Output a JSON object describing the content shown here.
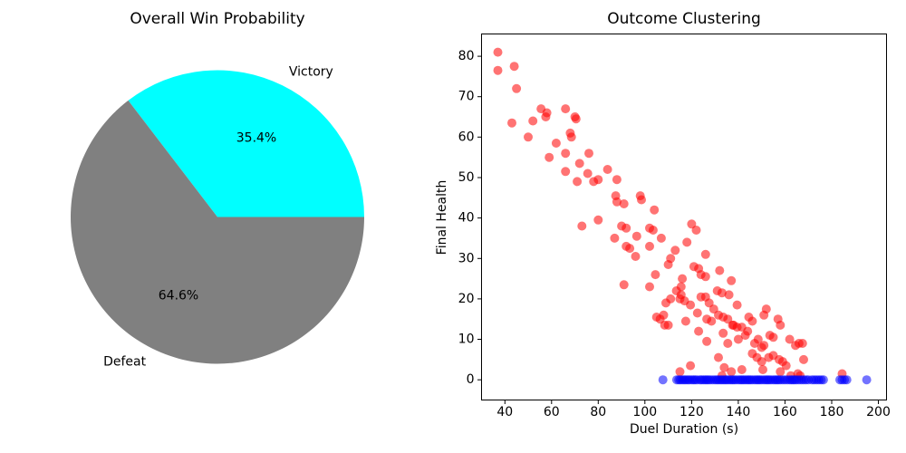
{
  "chart_data": [
    {
      "type": "pie",
      "title": "Overall Win Probability",
      "labels": [
        "Victory",
        "Defeat"
      ],
      "values": [
        35.4,
        64.6
      ],
      "pct_labels": [
        "35.4%",
        "64.6%"
      ],
      "colors": [
        "#00ffff",
        "#808080"
      ],
      "startangle": 0,
      "direction": "counterclockwise",
      "legend": "none"
    },
    {
      "type": "scatter",
      "title": "Outcome Clustering",
      "xlabel": "Duel Duration (s)",
      "ylabel": "Final Health",
      "xlim": [
        30,
        203.5
      ],
      "ylim": [
        -5,
        85.5
      ],
      "xticks": [
        40,
        60,
        80,
        100,
        120,
        140,
        160,
        180,
        200
      ],
      "yticks": [
        0,
        10,
        20,
        30,
        40,
        50,
        60,
        70,
        80
      ],
      "grid": false,
      "legend": "none",
      "marker_alpha": 0.55,
      "series": [
        {
          "name": "nonzero-final-health",
          "color": "#ff0000",
          "points": [
            [
              37,
              81
            ],
            [
              37,
              76.5
            ],
            [
              44,
              77.5
            ],
            [
              45,
              72
            ],
            [
              43,
              63.5
            ],
            [
              52,
              64
            ],
            [
              50,
              60
            ],
            [
              55.5,
              67
            ],
            [
              57.5,
              65
            ],
            [
              58,
              66
            ],
            [
              66,
              67
            ],
            [
              70,
              65
            ],
            [
              70.5,
              64.5
            ],
            [
              68,
              61
            ],
            [
              68.5,
              60
            ],
            [
              62,
              58.5
            ],
            [
              66,
              56
            ],
            [
              59,
              55
            ],
            [
              76,
              56
            ],
            [
              72,
              53.5
            ],
            [
              66,
              51.5
            ],
            [
              75.5,
              51
            ],
            [
              71,
              49
            ],
            [
              78,
              49
            ],
            [
              84,
              52
            ],
            [
              80,
              49.5
            ],
            [
              88,
              49.5
            ],
            [
              87.5,
              45.5
            ],
            [
              88,
              44
            ],
            [
              98,
              45.5
            ],
            [
              98.5,
              44.5
            ],
            [
              91,
              43.5
            ],
            [
              104,
              42
            ],
            [
              73,
              38
            ],
            [
              80,
              39.5
            ],
            [
              90,
              38
            ],
            [
              92,
              37.5
            ],
            [
              102,
              37.5
            ],
            [
              103.5,
              37
            ],
            [
              120,
              38.5
            ],
            [
              122,
              37
            ],
            [
              87,
              35
            ],
            [
              96.5,
              35.5
            ],
            [
              107,
              35
            ],
            [
              118,
              34
            ],
            [
              92,
              33
            ],
            [
              93.5,
              32.5
            ],
            [
              102,
              33
            ],
            [
              113,
              32
            ],
            [
              96,
              30.5
            ],
            [
              111,
              30
            ],
            [
              126,
              31
            ],
            [
              91,
              23.5
            ],
            [
              110,
              28.5
            ],
            [
              121,
              28
            ],
            [
              123,
              27.5
            ],
            [
              132,
              27
            ],
            [
              124,
              26
            ],
            [
              126,
              25.5
            ],
            [
              104.5,
              26
            ],
            [
              116,
              25
            ],
            [
              137,
              24.5
            ],
            [
              113.5,
              22
            ],
            [
              115.5,
              21
            ],
            [
              115,
              20
            ],
            [
              117,
              19.5
            ],
            [
              124,
              20.5
            ],
            [
              126,
              20.5
            ],
            [
              131,
              22
            ],
            [
              133,
              21.5
            ],
            [
              136,
              21
            ],
            [
              102,
              23
            ],
            [
              115.5,
              23
            ],
            [
              119.5,
              18.5
            ],
            [
              127.5,
              19
            ],
            [
              129.5,
              17.5
            ],
            [
              139.5,
              18.5
            ],
            [
              152,
              17.5
            ],
            [
              151,
              16
            ],
            [
              122.5,
              16.5
            ],
            [
              131.5,
              16
            ],
            [
              133.5,
              15.5
            ],
            [
              126.5,
              15
            ],
            [
              128.5,
              14.5
            ],
            [
              135.5,
              15
            ],
            [
              137.5,
              13.5
            ],
            [
              144.5,
              15.5
            ],
            [
              157,
              15
            ],
            [
              158,
              13.5
            ],
            [
              146,
              14.5
            ],
            [
              109,
              19
            ],
            [
              111,
              20
            ],
            [
              105,
              15.5
            ],
            [
              108.5,
              13.5
            ],
            [
              108,
              16
            ],
            [
              106.5,
              15
            ],
            [
              110,
              13.5
            ],
            [
              117.5,
              14.5
            ],
            [
              123,
              12
            ],
            [
              126.5,
              9.5
            ],
            [
              133.5,
              11.5
            ],
            [
              135.5,
              9
            ],
            [
              138,
              13.5
            ],
            [
              141.5,
              13
            ],
            [
              144,
              12
            ],
            [
              147,
              9
            ],
            [
              151,
              8.5
            ],
            [
              139.5,
              13
            ],
            [
              153.5,
              11
            ],
            [
              155,
              10.5
            ],
            [
              162,
              10
            ],
            [
              166,
              9
            ],
            [
              167.5,
              9
            ],
            [
              150,
              8
            ],
            [
              164.5,
              8.5
            ],
            [
              143,
              11
            ],
            [
              148.5,
              10
            ],
            [
              140,
              10
            ],
            [
              146,
              6.5
            ],
            [
              148,
              5.5
            ],
            [
              119.5,
              3.5
            ],
            [
              131.5,
              5.5
            ],
            [
              134,
              3
            ],
            [
              137,
              2
            ],
            [
              150,
              4.5
            ],
            [
              155,
              6
            ],
            [
              157.5,
              5
            ],
            [
              159,
              4.5
            ],
            [
              168,
              5
            ],
            [
              150.5,
              2.5
            ],
            [
              158,
              2
            ],
            [
              162.5,
              1
            ],
            [
              115,
              2
            ],
            [
              141.5,
              2.5
            ],
            [
              184.5,
              1.5
            ],
            [
              153,
              5.5
            ],
            [
              133,
              1
            ],
            [
              165.5,
              1.5
            ],
            [
              166.5,
              1
            ],
            [
              160.5,
              3.5
            ]
          ]
        },
        {
          "name": "zero-final-health",
          "color": "#0000ff",
          "points": [
            [
              107.7,
              0
            ],
            [
              113.6,
              0
            ],
            [
              114.5,
              0
            ],
            [
              115.2,
              0
            ],
            [
              116,
              0
            ],
            [
              116.8,
              0
            ],
            [
              117.5,
              0
            ],
            [
              118.3,
              0
            ],
            [
              119,
              0
            ],
            [
              120,
              0
            ],
            [
              120.8,
              0
            ],
            [
              121.5,
              0
            ],
            [
              122.3,
              0
            ],
            [
              123.5,
              0
            ],
            [
              124.2,
              0
            ],
            [
              125,
              0
            ],
            [
              125.8,
              0
            ],
            [
              126.5,
              0
            ],
            [
              127.2,
              0
            ],
            [
              128,
              0
            ],
            [
              129,
              0
            ],
            [
              130,
              0
            ],
            [
              130.8,
              0
            ],
            [
              131.5,
              0
            ],
            [
              132.3,
              0
            ],
            [
              133,
              0
            ],
            [
              133.8,
              0
            ],
            [
              134.5,
              0
            ],
            [
              135.2,
              0
            ],
            [
              136,
              0
            ],
            [
              136.8,
              0
            ],
            [
              137.5,
              0
            ],
            [
              138.2,
              0
            ],
            [
              139,
              0
            ],
            [
              140,
              0
            ],
            [
              140.8,
              0
            ],
            [
              141.5,
              0
            ],
            [
              142.2,
              0
            ],
            [
              143,
              0
            ],
            [
              143.8,
              0
            ],
            [
              144.5,
              0
            ],
            [
              145.2,
              0
            ],
            [
              146,
              0
            ],
            [
              147,
              0
            ],
            [
              147.8,
              0
            ],
            [
              148.5,
              0
            ],
            [
              149.2,
              0
            ],
            [
              150,
              0
            ],
            [
              151,
              0
            ],
            [
              151.8,
              0
            ],
            [
              152.5,
              0
            ],
            [
              153.2,
              0
            ],
            [
              154,
              0
            ],
            [
              155,
              0
            ],
            [
              155.8,
              0
            ],
            [
              156.5,
              0
            ],
            [
              157.2,
              0
            ],
            [
              158,
              0
            ],
            [
              159,
              0
            ],
            [
              160,
              0
            ],
            [
              161,
              0
            ],
            [
              162,
              0
            ],
            [
              162.8,
              0
            ],
            [
              163.5,
              0
            ],
            [
              164.2,
              0
            ],
            [
              165,
              0
            ],
            [
              166,
              0
            ],
            [
              167,
              0
            ],
            [
              168,
              0
            ],
            [
              169,
              0
            ],
            [
              170,
              0
            ],
            [
              171.5,
              0
            ],
            [
              172.5,
              0
            ],
            [
              173.5,
              0
            ],
            [
              174.5,
              0
            ],
            [
              175.5,
              0
            ],
            [
              176.5,
              0
            ],
            [
              183.5,
              0
            ],
            [
              184.5,
              0
            ],
            [
              185.5,
              0
            ],
            [
              186.5,
              0
            ],
            [
              195,
              0
            ]
          ]
        }
      ]
    }
  ]
}
